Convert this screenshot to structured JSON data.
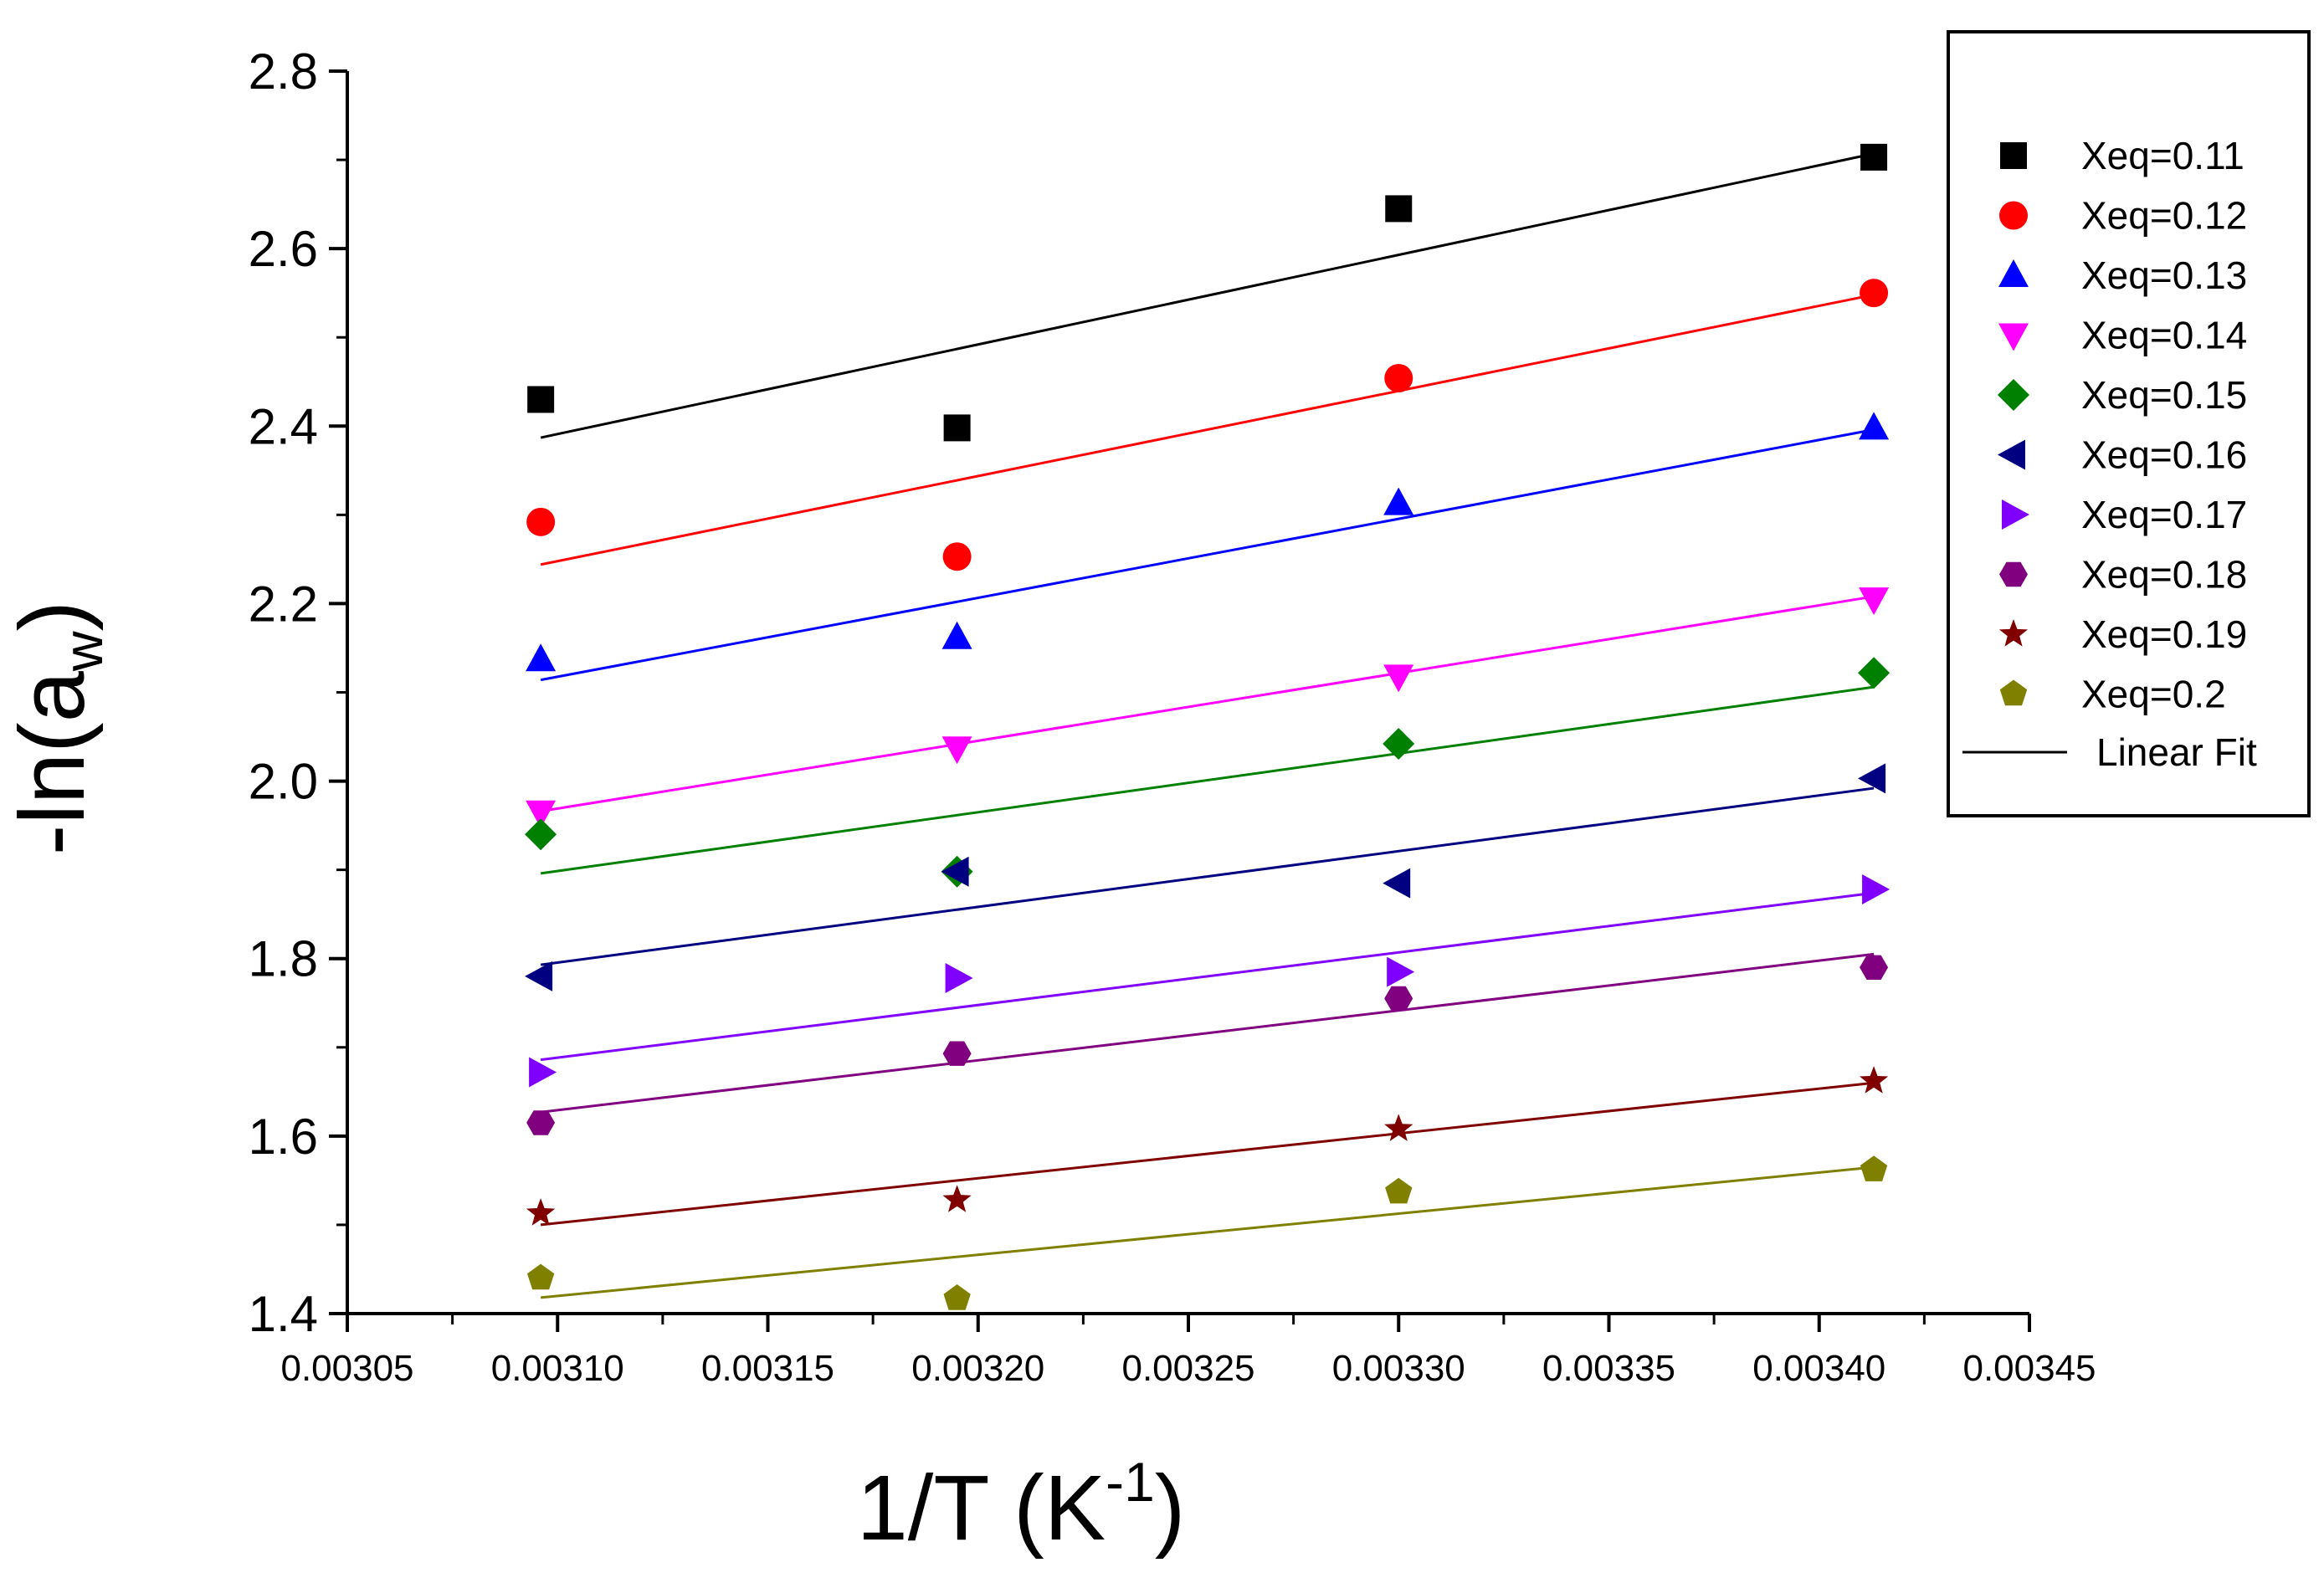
{
  "chart_data": {
    "type": "scatter",
    "title": "",
    "xlabel": {
      "main": "1/T (K",
      "sup": "-1",
      "end": ")"
    },
    "ylabel": {
      "main": "-ln(a",
      "sub": "w",
      "end": ")"
    },
    "xlim": [
      0.00305,
      0.00345
    ],
    "ylim": [
      1.4,
      2.8
    ],
    "x_ticks": [
      "0.00305",
      "0.00310",
      "0.00315",
      "0.00320",
      "0.00325",
      "0.00330",
      "0.00335",
      "0.00340",
      "0.00345"
    ],
    "y_ticks": [
      "1.4",
      "1.6",
      "1.8",
      "2.0",
      "2.2",
      "2.4",
      "2.6",
      "2.8"
    ],
    "x": [
      0.003096,
      0.003195,
      0.0033,
      0.003413
    ],
    "series": [
      {
        "name": "Xeq=0.11",
        "marker": "square",
        "color": "#000000",
        "values": [
          2.43,
          2.398,
          2.645,
          2.703
        ],
        "fit": [
          2.387,
          2.707
        ]
      },
      {
        "name": "Xeq=0.12",
        "marker": "circle",
        "color": "#ff0000",
        "values": [
          2.292,
          2.253,
          2.454,
          2.55
        ],
        "fit": [
          2.244,
          2.548
        ]
      },
      {
        "name": "Xeq=0.13",
        "marker": "triangle-up",
        "color": "#0000ff",
        "values": [
          2.137,
          2.162,
          2.313,
          2.398
        ],
        "fit": [
          2.114,
          2.396
        ]
      },
      {
        "name": "Xeq=0.14",
        "marker": "triangle-down",
        "color": "#ff00ff",
        "values": [
          1.965,
          2.037,
          2.118,
          2.205
        ],
        "fit": [
          1.966,
          2.208
        ]
      },
      {
        "name": "Xeq=0.15",
        "marker": "diamond",
        "color": "#008000",
        "values": [
          1.94,
          1.898,
          2.042,
          2.122
        ],
        "fit": [
          1.896,
          2.106
        ]
      },
      {
        "name": "Xeq=0.16",
        "marker": "triangle-left",
        "color": "#000080",
        "values": [
          1.78,
          1.898,
          1.885,
          2.003
        ],
        "fit": [
          1.793,
          1.992
        ]
      },
      {
        "name": "Xeq=0.17",
        "marker": "triangle-right",
        "color": "#8000ff",
        "values": [
          1.672,
          1.778,
          1.785,
          1.878
        ],
        "fit": [
          1.686,
          1.874
        ]
      },
      {
        "name": "Xeq=0.18",
        "marker": "hexagon",
        "color": "#800080",
        "values": [
          1.615,
          1.693,
          1.755,
          1.79
        ],
        "fit": [
          1.627,
          1.805
        ]
      },
      {
        "name": "Xeq=0.19",
        "marker": "star",
        "color": "#800000",
        "values": [
          1.513,
          1.528,
          1.608,
          1.662
        ],
        "fit": [
          1.5,
          1.66
        ]
      },
      {
        "name": "Xeq=0.2",
        "marker": "pentagon",
        "color": "#808000",
        "values": [
          1.44,
          1.417,
          1.537,
          1.562
        ],
        "fit": [
          1.418,
          1.565
        ]
      }
    ],
    "fit_label": "Linear Fit",
    "fit_x": [
      0.003096,
      0.003413
    ],
    "legend_position": "top-right",
    "grid": false
  }
}
